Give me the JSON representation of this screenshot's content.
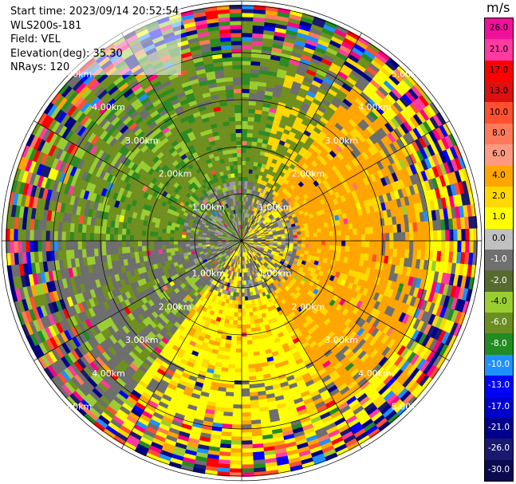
{
  "header": {
    "start_time": "Start time: 2023/09/14 20:52:54",
    "instrument": "WLS200s-181",
    "field": "Field: VEL",
    "elevation": "Elevation(deg): 35.30",
    "nrays": "NRays: 120"
  },
  "colorbar": {
    "unit": "m/s",
    "ticks": [
      "26.0",
      "21.0",
      "17.0",
      "13.0",
      "10.0",
      "8.0",
      "6.0",
      "4.0",
      "2.0",
      "1.0",
      "0.0",
      "-1.0",
      "-2.0",
      "-4.0",
      "-6.0",
      "-8.0",
      "-10.0",
      "-13.0",
      "-17.0",
      "-21.0",
      "-26.0",
      "-30.0"
    ],
    "colors": [
      "#f0109a",
      "#ff3aa0",
      "#ff0000",
      "#dd1010",
      "#ff5030",
      "#ff7a5a",
      "#ff9a80",
      "#ffa500",
      "#ffd800",
      "#ffff00",
      "#c0c0c0",
      "#707070",
      "#556b2f",
      "#9acd32",
      "#6b8e23",
      "#228b22",
      "#1e90ff",
      "#0000ff",
      "#0000cd",
      "#00008b",
      "#191970",
      "#0a0a50"
    ]
  },
  "chart_data": {
    "type": "heatmap",
    "subtype": "ppi",
    "field": "VEL",
    "rays": 120,
    "range_rings_km": [
      1.0,
      2.0,
      3.0,
      4.0,
      5.0
    ],
    "ring_labels": [
      "1.00km",
      "2.00km",
      "3.00km",
      "4.00km",
      "5.00km"
    ],
    "max_range_km": 5.1,
    "vmin": -30.0,
    "vmax": 30.0,
    "pattern": "receding (positive, yellow/orange) velocities to the east and south-east, approaching (negative, green) velocities to the west and north-west, noisy multicolor returns at far ranges",
    "colorbar_ticks": [
      26.0,
      21.0,
      17.0,
      13.0,
      10.0,
      8.0,
      6.0,
      4.0,
      2.0,
      1.0,
      0.0,
      -1.0,
      -2.0,
      -4.0,
      -6.0,
      -8.0,
      -10.0,
      -13.0,
      -17.0,
      -21.0,
      -26.0,
      -30.0
    ]
  }
}
